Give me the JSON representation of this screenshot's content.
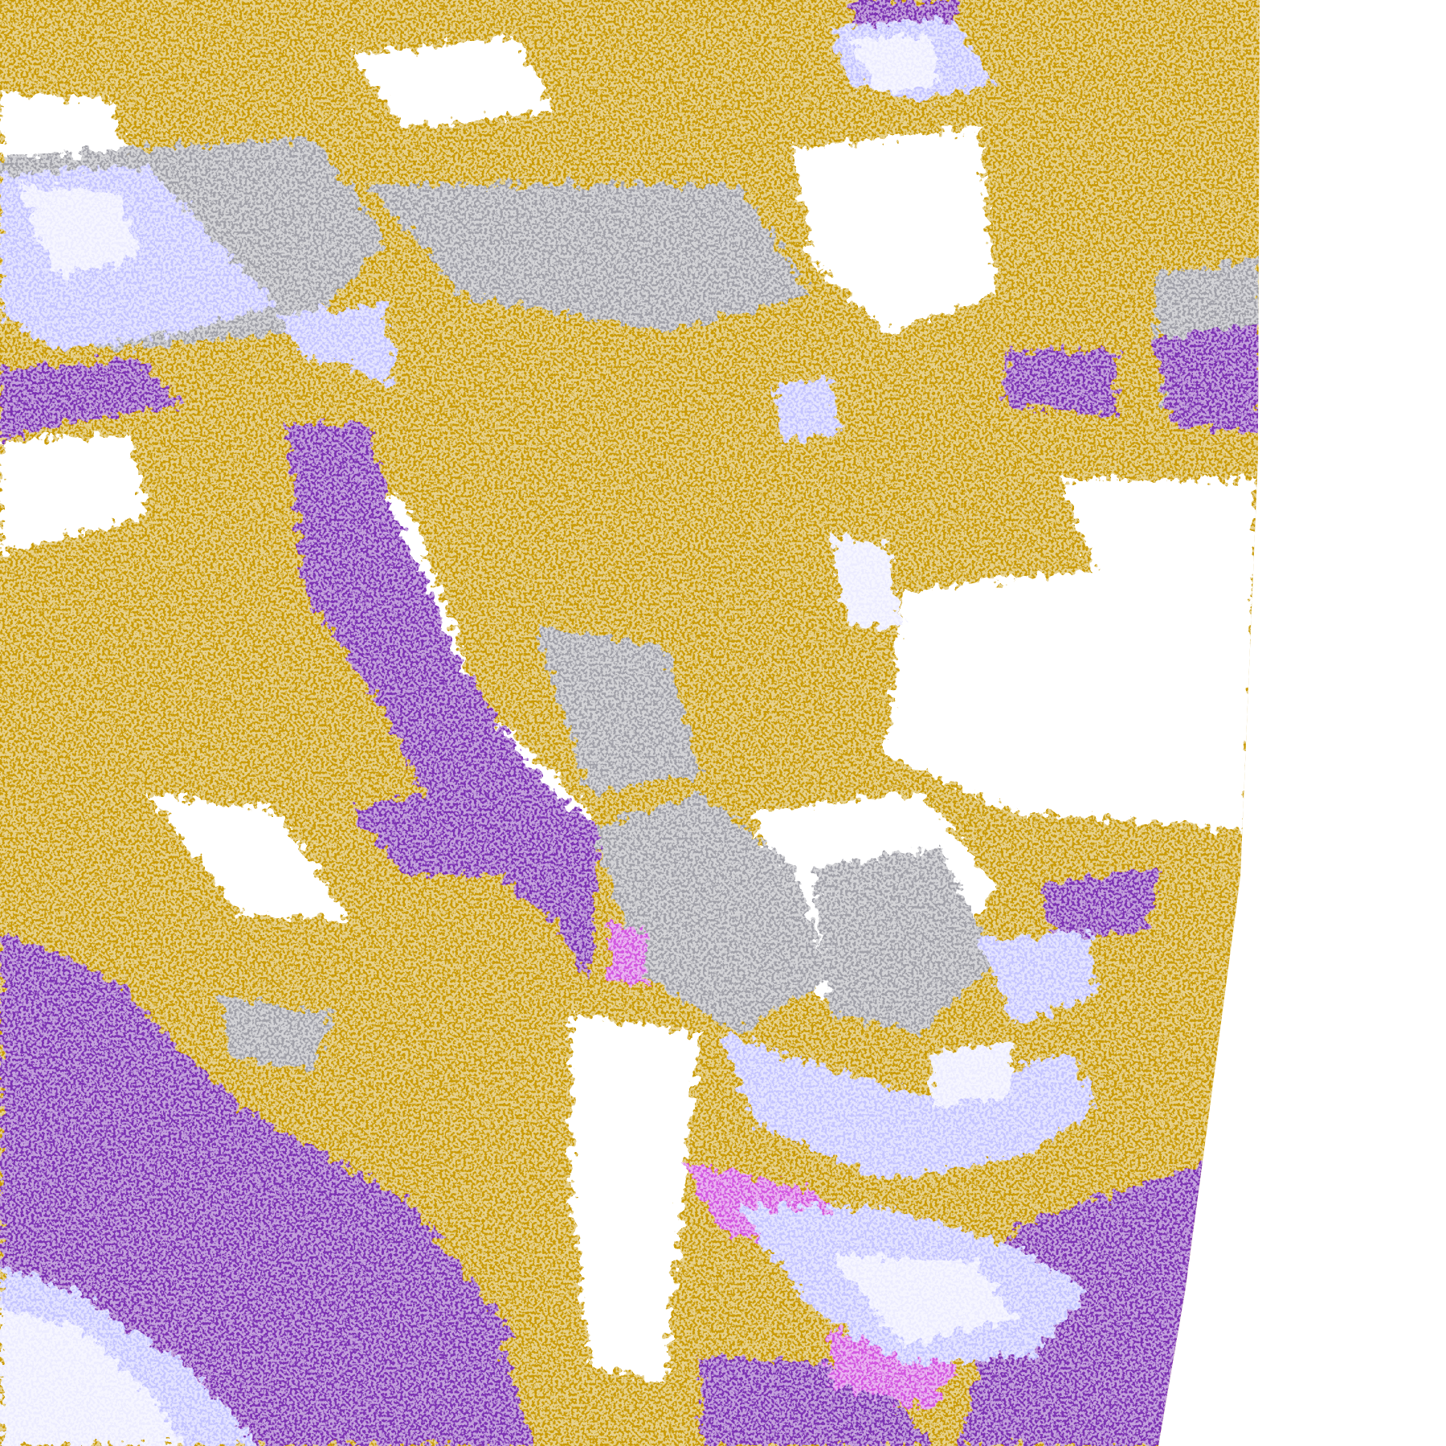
{
  "map": {
    "kind": "satellite cloud classification imagery",
    "palette": {
      "background": "#ffffff",
      "gold": "#c99a05",
      "purple": "#7b33b3",
      "magenta": "#d257e0",
      "lavender": "#c4c4ff",
      "pale_lavender": "#ececff",
      "periwinkle": "#9c9cf0",
      "gray": "#a0a0a8"
    }
  }
}
